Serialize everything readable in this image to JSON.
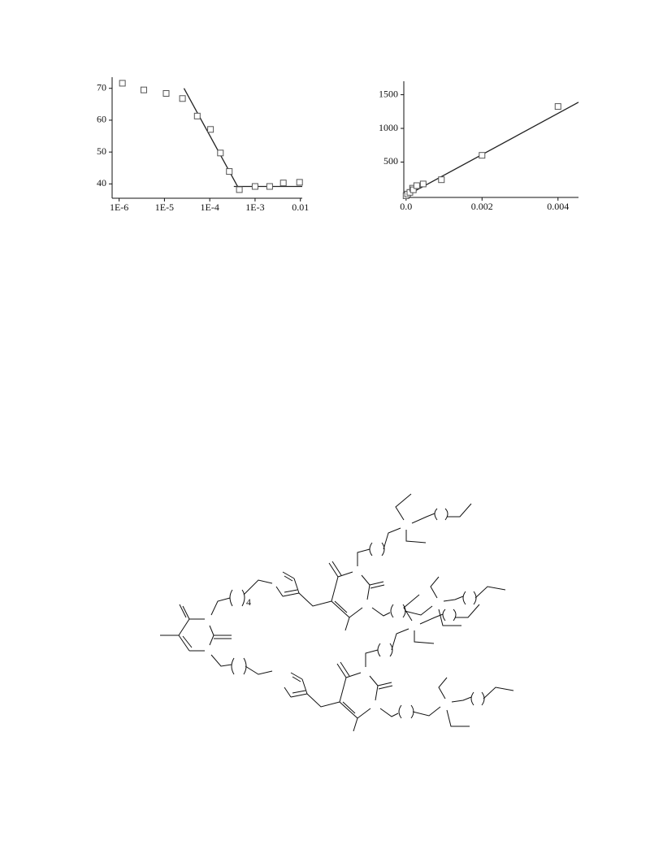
{
  "chart_data": [
    {
      "type": "scatter",
      "xscale": "log",
      "xlim": [
        7e-07,
        0.011
      ],
      "ylim": [
        35.5,
        73.5
      ],
      "xticks": [
        {
          "value": 1e-06,
          "label": "1E-6"
        },
        {
          "value": 1e-05,
          "label": "1E-5"
        },
        {
          "value": 0.0001,
          "label": "1E-4"
        },
        {
          "value": 0.001,
          "label": "1E-3"
        },
        0.01
      ],
      "yticks": [
        40,
        50,
        60,
        70
      ],
      "marker_color": "#555555",
      "line_color": "#222222",
      "series": [
        {
          "x": [
            1.18e-06,
            3.5e-06,
            1.09e-05,
            2.5e-05,
            5.3e-05,
            0.000104,
            0.000172,
            0.00027,
            0.00045,
            0.001,
            0.0021,
            0.0042,
            0.0096
          ],
          "values": [
            71.6,
            69.5,
            68.4,
            66.8,
            61.3,
            57.1,
            49.7,
            43.9,
            38.2,
            39.2,
            39.2,
            40.3,
            40.5
          ]
        }
      ],
      "lines": [
        {
          "x": [
            2.7e-05,
            0.00043
          ],
          "values": [
            70,
            38.7
          ]
        },
        {
          "x": [
            0.00034,
            0.011
          ],
          "values": [
            39.2,
            39.2
          ]
        }
      ]
    },
    {
      "type": "scatter",
      "xscale": "linear",
      "xlim": [
        -6e-05,
        0.00454
      ],
      "ylim": [
        -25,
        1700
      ],
      "xticks": [
        {
          "value": 0,
          "label": "0.0"
        },
        0.002,
        0.004
      ],
      "yticks": [
        500,
        1000,
        1500
      ],
      "marker_color": "#555555",
      "line_color": "#222222",
      "series": [
        {
          "x": [
            0,
            4e-05,
            0.0001,
            0.00017,
            0.00019,
            0.00028,
            0.00045,
            0.00093,
            0.002,
            0.004
          ],
          "values": [
            0,
            25,
            50,
            112,
            88,
            150,
            175,
            238,
            600,
            1325
          ]
        }
      ],
      "lines": [
        {
          "x": [
            0,
            0.00454
          ],
          "values": [
            0,
            1388
          ]
        }
      ]
    }
  ],
  "structure": {
    "subscript": "4"
  }
}
